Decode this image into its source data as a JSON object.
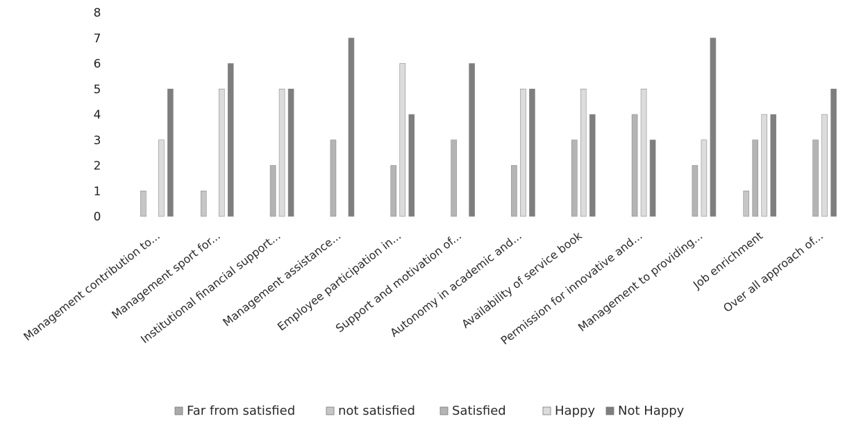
{
  "chart_data": {
    "type": "bar",
    "title": "",
    "xlabel": "",
    "ylabel": "",
    "ylim": [
      0,
      8
    ],
    "yticks": [
      "0",
      "1",
      "2",
      "3",
      "4",
      "5",
      "6",
      "7",
      "8"
    ],
    "grid": false,
    "legend_position": "bottom",
    "categories": [
      "Management contribution to...",
      "Management sport for...",
      "Institutional financial support...",
      "Management assistance...",
      "Employee participation in...",
      "Support and motivation of...",
      "Autonomy in academic and...",
      "Availability of service book",
      "Permission for innovative and...",
      "Management to providing...",
      "Job enrichment",
      "Over all approach of..."
    ],
    "series": [
      {
        "name": "Far from satisfied",
        "color": "#a9a9a9",
        "values": [
          0,
          0,
          0,
          0,
          0,
          0,
          0,
          0,
          0,
          0,
          0,
          0
        ]
      },
      {
        "name": "not satisfied",
        "color": "#c6c6c6",
        "values": [
          1,
          1,
          0,
          0,
          0,
          0,
          0,
          0,
          0,
          0,
          1,
          0
        ]
      },
      {
        "name": "Satisfied",
        "color": "#b4b4b4",
        "values": [
          0,
          0,
          2,
          3,
          2,
          3,
          2,
          3,
          4,
          2,
          3,
          3
        ]
      },
      {
        "name": "Happy",
        "color": "#dcdcdc",
        "values": [
          3,
          5,
          5,
          0,
          6,
          0,
          5,
          5,
          5,
          3,
          4,
          4
        ]
      },
      {
        "name": "Not Happy",
        "color": "#7e7e7e",
        "values": [
          5,
          6,
          5,
          7,
          4,
          6,
          5,
          4,
          3,
          7,
          4,
          5
        ]
      }
    ]
  }
}
